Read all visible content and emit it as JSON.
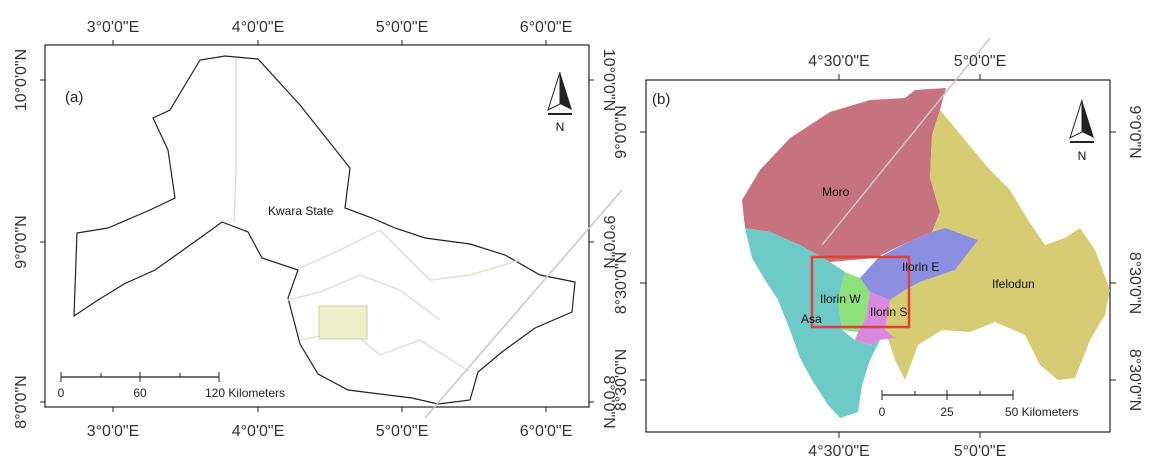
{
  "panel_a": {
    "panel_label": "(a)",
    "top_ticks": [
      "3°0'0\"E",
      "4°0'0\"E",
      "5°0'0\"E",
      "6°0'0\"E"
    ],
    "bottom_ticks": [
      "3°0'0\"E",
      "4°0'0\"E",
      "5°0'0\"E",
      "6°0'0\"E"
    ],
    "left_ticks": [
      "10°0'0\"N",
      "9°0'0\"N",
      "8°0'0\"N"
    ],
    "right_ticks": [
      "10°0'0\"N",
      "9°0'0\"N",
      "8°0'0\"N"
    ],
    "region_label": "Kwara State",
    "north_label": "N",
    "scale_labels": [
      "0",
      "60",
      "120 Kilometers"
    ]
  },
  "panel_b": {
    "panel_label": "(b)",
    "top_ticks": [
      "4°30'0\"E",
      "5°0'0\"E"
    ],
    "bottom_ticks": [
      "4°30'0\"E",
      "5°0'0\"E"
    ],
    "left_ticks": [
      "9°0'0\"N",
      "8°30'0\"N",
      "8°30'0\"N"
    ],
    "right_ticks": [
      "9°0'0\"N",
      "8°30'0\"N",
      "8°30'0\"N"
    ],
    "lga_labels": [
      "Moro",
      "Ilorin E",
      "Ifelodun",
      "Ilorin W",
      "Asa",
      "Ilorin S"
    ],
    "north_label": "N",
    "scale_labels": [
      "0",
      "25",
      "50 Kilometers"
    ]
  },
  "colors": {
    "moro": "#c6737f",
    "ifelodun": "#d6cc73",
    "asa": "#6ecac6",
    "ilorin_e": "#8c8ee0",
    "ilorin_w": "#8ee07a",
    "ilorin_s": "#d98ae0",
    "highlight_box": "#e0403a",
    "study_area": "#eef0cc"
  }
}
